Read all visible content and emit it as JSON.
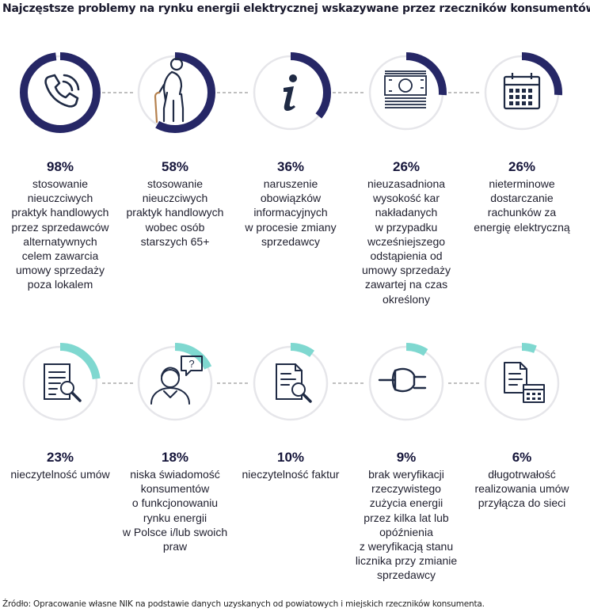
{
  "title": "Najczęstsze problemy na rynku energii elektrycznej wskazywane przez rzeczników konsumentów",
  "source": "Źródło: Opracowanie własne NIK na podstawie danych uzyskanych od powiatowych i miejskich  rzeczników konsumenta.",
  "colors": {
    "navy": "#262766",
    "teal": "#7fd8d0",
    "track": "#e6e6ea",
    "icon": "#1f2a44"
  },
  "chart_data": {
    "type": "progress-rings",
    "unit": "%",
    "items": [
      {
        "value": 98,
        "value_label": "98%",
        "icon": "phone-icon",
        "ring": "navy",
        "lines": [
          "stosowanie",
          "nieuczciwych",
          "praktyk handlowych",
          "przez sprzedawców",
          "alternatywnych",
          "celem zawarcia",
          "umowy sprzedaży",
          "poza lokalem"
        ]
      },
      {
        "value": 58,
        "value_label": "58%",
        "icon": "elderly-person-icon",
        "ring": "navy",
        "lines": [
          "stosowanie",
          "nieuczciwych",
          "praktyk handlowych",
          "wobec osób",
          "starszych 65+"
        ]
      },
      {
        "value": 36,
        "value_label": "36%",
        "icon": "info-icon",
        "ring": "navy",
        "lines": [
          "naruszenie",
          "obowiązków",
          "informacyjnych",
          "w procesie zmiany",
          "sprzedawcy"
        ]
      },
      {
        "value": 26,
        "value_label": "26%",
        "icon": "banknotes-icon",
        "ring": "navy",
        "lines": [
          "nieuzasadniona",
          "wysokość kar",
          "nakładanych",
          "w przypadku",
          "wcześniejszego",
          "odstąpienia od",
          "umowy sprzedaży",
          "zawartej na czas",
          "określony"
        ]
      },
      {
        "value": 26,
        "value_label": "26%",
        "icon": "calendar-icon",
        "ring": "navy",
        "lines": [
          "nieterminowe",
          "dostarczanie",
          "rachunków za",
          "energię elektryczną"
        ]
      },
      {
        "value": 23,
        "value_label": "23%",
        "icon": "document-search-icon",
        "ring": "teal",
        "lines": [
          "nieczytelność umów"
        ]
      },
      {
        "value": 18,
        "value_label": "18%",
        "icon": "person-question-icon",
        "ring": "teal",
        "lines": [
          "niska świadomość",
          "konsumentów",
          "o funkcjonowaniu",
          "rynku energii",
          "w Polsce i/lub swoich",
          "praw"
        ]
      },
      {
        "value": 10,
        "value_label": "10%",
        "icon": "invoice-search-icon",
        "ring": "teal",
        "lines": [
          "nieczytelność faktur"
        ]
      },
      {
        "value": 9,
        "value_label": "9%",
        "icon": "plug-icon",
        "ring": "teal",
        "lines": [
          "brak weryfikacji",
          "rzeczywistego",
          "zużycia energii",
          "przez kilka lat lub",
          "opóźnienia",
          "z weryfikacją stanu",
          "licznika przy zmianie",
          "sprzedawcy"
        ]
      },
      {
        "value": 6,
        "value_label": "6%",
        "icon": "document-calendar-icon",
        "ring": "teal",
        "lines": [
          "długotrwałość",
          "realizowania umów",
          "przyłącza do sieci"
        ]
      }
    ]
  }
}
